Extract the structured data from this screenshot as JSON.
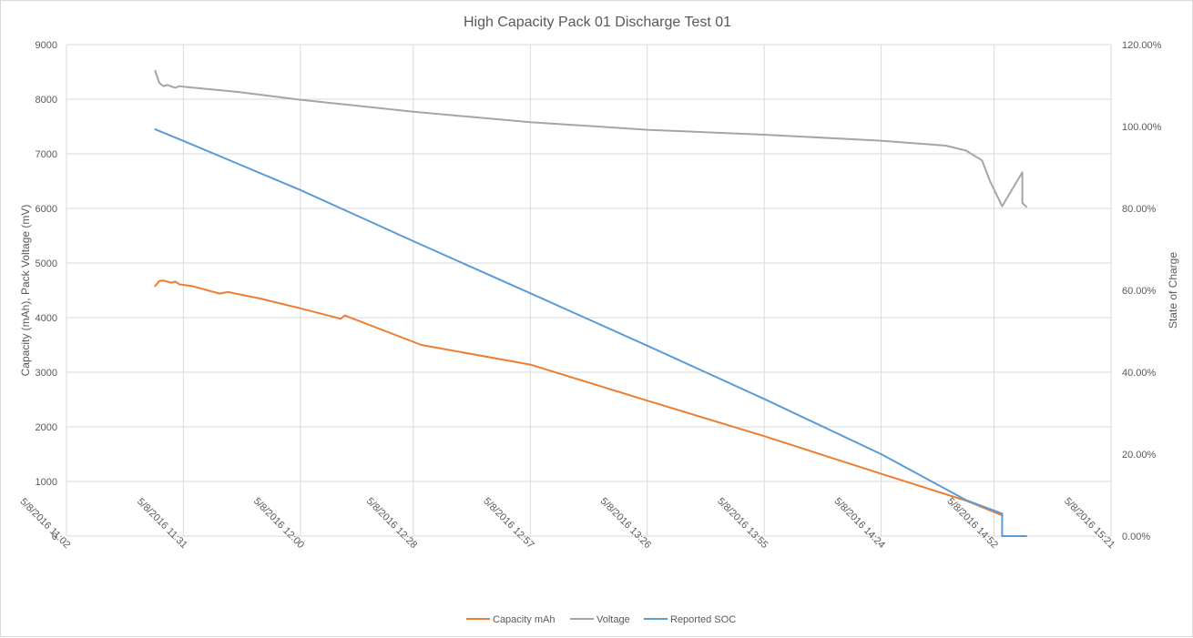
{
  "chart_data": {
    "type": "line",
    "title": "High Capacity Pack 01 Discharge Test 01",
    "ylabel": "Capacity (mAh), Pack Voltage (mV)",
    "y2label": "State of Charge",
    "ylim": [
      0,
      9000
    ],
    "y2lim": [
      0,
      1.2
    ],
    "yticks": [
      "0",
      "1000",
      "2000",
      "3000",
      "4000",
      "5000",
      "6000",
      "7000",
      "8000",
      "9000"
    ],
    "y2ticks": [
      "0.00%",
      "20.00%",
      "40.00%",
      "60.00%",
      "80.00%",
      "100.00%",
      "120.00%"
    ],
    "xticks": [
      "5/8/2016 11:02",
      "5/8/2016 11:31",
      "5/8/2016 12:00",
      "5/8/2016 12:28",
      "5/8/2016 12:57",
      "5/8/2016 13:26",
      "5/8/2016 13:55",
      "5/8/2016 14:24",
      "5/8/2016 14:52",
      "5/8/2016 15:21"
    ],
    "xlim": [
      "5/8/2016 11:02",
      "5/8/2016 15:21"
    ],
    "grid": true,
    "legend_position": "bottom",
    "series": [
      {
        "name": "Capacity mAh",
        "color": "#ED7D31",
        "axis": "left",
        "x": [
          "5/8/2016 11:24",
          "5/8/2016 11:25",
          "5/8/2016 11:26",
          "5/8/2016 11:28",
          "5/8/2016 11:29",
          "5/8/2016 11:30",
          "5/8/2016 11:33",
          "5/8/2016 11:40",
          "5/8/2016 11:42",
          "5/8/2016 11:50",
          "5/8/2016 12:00",
          "5/8/2016 12:10",
          "5/8/2016 12:11",
          "5/8/2016 12:30",
          "5/8/2016 12:57",
          "5/8/2016 13:26",
          "5/8/2016 13:55",
          "5/8/2016 14:24",
          "5/8/2016 14:45",
          "5/8/2016 14:54"
        ],
        "values": [
          4580,
          4670,
          4680,
          4640,
          4660,
          4610,
          4580,
          4440,
          4470,
          4350,
          4170,
          3980,
          4040,
          3500,
          3140,
          2480,
          1830,
          1140,
          650,
          380
        ]
      },
      {
        "name": "Voltage",
        "color": "#A5A5A5",
        "axis": "left",
        "x": [
          "5/8/2016 11:24",
          "5/8/2016 11:25",
          "5/8/2016 11:26",
          "5/8/2016 11:27",
          "5/8/2016 11:29",
          "5/8/2016 11:30",
          "5/8/2016 11:31",
          "5/8/2016 11:35",
          "5/8/2016 11:45",
          "5/8/2016 12:00",
          "5/8/2016 12:28",
          "5/8/2016 12:57",
          "5/8/2016 13:26",
          "5/8/2016 13:55",
          "5/8/2016 14:24",
          "5/8/2016 14:40",
          "5/8/2016 14:45",
          "5/8/2016 14:49",
          "5/8/2016 14:51",
          "5/8/2016 14:54",
          "5/8/2016 14:59",
          "5/8/2016 14:59",
          "5/8/2016 15:00"
        ],
        "values": [
          8520,
          8300,
          8240,
          8260,
          8210,
          8240,
          8230,
          8200,
          8130,
          7990,
          7770,
          7580,
          7440,
          7350,
          7240,
          7150,
          7060,
          6880,
          6500,
          6040,
          6660,
          6100,
          6030
        ]
      },
      {
        "name": "Reported SOC",
        "color": "#5B9BD5",
        "axis": "right",
        "x": [
          "5/8/2016 11:24",
          "5/8/2016 11:31",
          "5/8/2016 12:00",
          "5/8/2016 12:28",
          "5/8/2016 12:57",
          "5/8/2016 13:26",
          "5/8/2016 13:55",
          "5/8/2016 14:24",
          "5/8/2016 14:45",
          "5/8/2016 14:54",
          "5/8/2016 14:54",
          "5/8/2016 15:00"
        ],
        "values": [
          0.993,
          0.965,
          0.845,
          0.72,
          0.593,
          0.465,
          0.335,
          0.2,
          0.088,
          0.055,
          0.0,
          0.0
        ]
      }
    ]
  }
}
